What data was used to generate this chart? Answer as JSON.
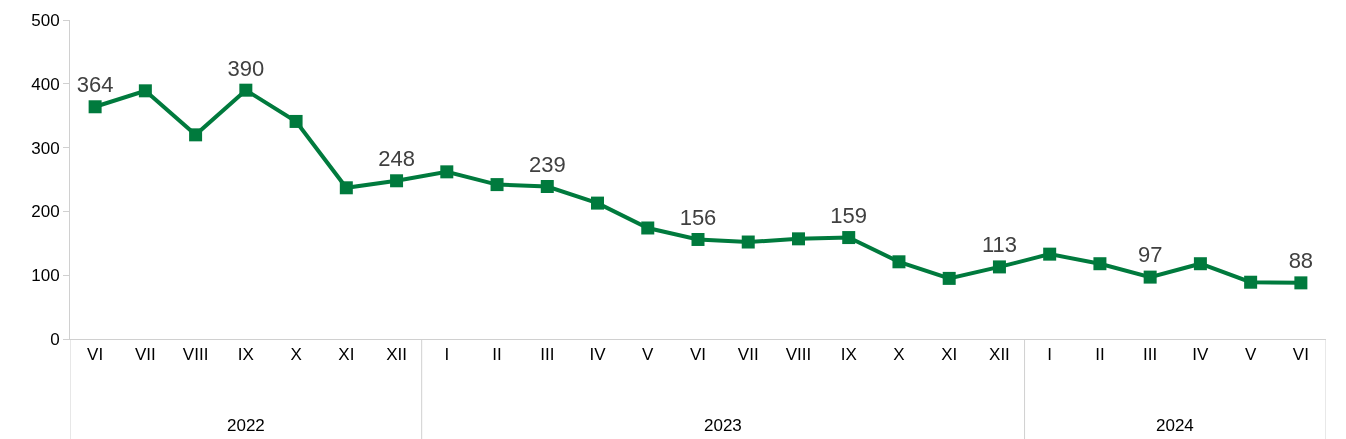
{
  "chart_data": {
    "type": "line",
    "categories": [
      "VI",
      "VII",
      "VIII",
      "IX",
      "X",
      "XI",
      "XII",
      "I",
      "II",
      "III",
      "IV",
      "V",
      "VI",
      "VII",
      "VIII",
      "IX",
      "X",
      "XI",
      "XII",
      "I",
      "II",
      "III",
      "IV",
      "V",
      "VI"
    ],
    "series": [
      {
        "color": "#007a3d",
        "values": [
          364,
          389,
          320,
          390,
          341,
          237,
          248,
          262,
          242,
          239,
          213,
          174,
          156,
          152,
          157,
          159,
          121,
          95,
          113,
          133,
          118,
          97,
          118,
          89,
          88
        ],
        "value_labels": [
          "364",
          null,
          null,
          "390",
          null,
          null,
          "248",
          null,
          null,
          "239",
          null,
          null,
          "156",
          null,
          null,
          "159",
          null,
          null,
          "113",
          null,
          null,
          "97",
          null,
          null,
          "88"
        ]
      }
    ],
    "ylim": [
      0,
      500
    ],
    "yticks": [
      0,
      100,
      200,
      300,
      400,
      500
    ],
    "annotations": [
      "2022",
      "2023",
      "2024"
    ],
    "grid": false,
    "marker": "square",
    "line_style": "solid"
  }
}
